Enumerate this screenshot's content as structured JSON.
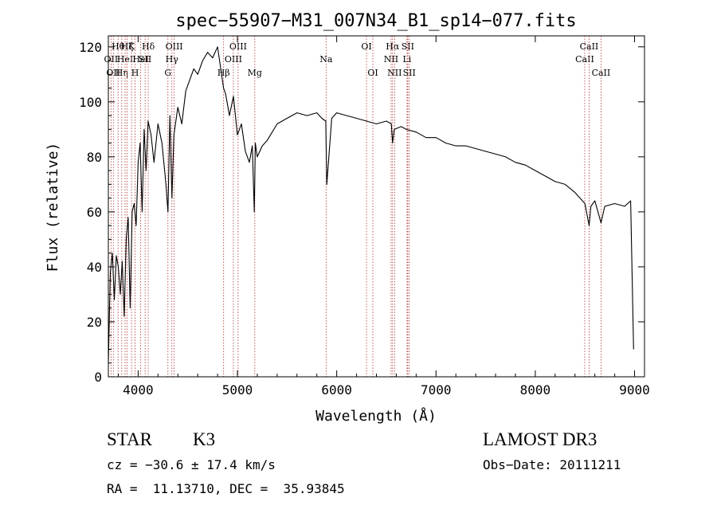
{
  "chart_data": {
    "type": "line",
    "title": "spec−55907−M31_007N34_B1_sp14−077.fits",
    "xlabel": "Wavelength (Å)",
    "ylabel": "Flux (relative)",
    "xlim": [
      3700,
      9100
    ],
    "ylim": [
      0,
      124
    ],
    "xticks": [
      4000,
      5000,
      6000,
      7000,
      8000,
      9000
    ],
    "yticks": [
      0,
      20,
      40,
      60,
      80,
      100,
      120
    ],
    "grid": false,
    "line_color": "#000000",
    "marker_color": "#b03030",
    "series": [
      {
        "values_note": "",
        "x": [
          3700,
          3720,
          3740,
          3760,
          3780,
          3800,
          3820,
          3840,
          3860,
          3880,
          3900,
          3920,
          3940,
          3960,
          3980,
          4000,
          4020,
          4040,
          4060,
          4080,
          4100,
          4130,
          4160,
          4200,
          4240,
          4280,
          4300,
          4320,
          4340,
          4360,
          4400,
          4440,
          4480,
          4520,
          4560,
          4600,
          4650,
          4700,
          4750,
          4800,
          4840,
          4860,
          4880,
          4920,
          4960,
          5000,
          5040,
          5080,
          5120,
          5150,
          5170,
          5180,
          5200,
          5250,
          5300,
          5400,
          5500,
          5600,
          5700,
          5800,
          5850,
          5890,
          5900,
          5950,
          6000,
          6100,
          6200,
          6300,
          6400,
          6500,
          6550,
          6563,
          6580,
          6650,
          6700,
          6800,
          6900,
          7000,
          7100,
          7200,
          7300,
          7400,
          7500,
          7600,
          7700,
          7800,
          7900,
          8000,
          8100,
          8200,
          8300,
          8400,
          8500,
          8542,
          8560,
          8600,
          8662,
          8700,
          8800,
          8900,
          8960,
          8990
        ],
        "y": [
          5,
          38,
          45,
          28,
          44,
          40,
          30,
          42,
          22,
          50,
          58,
          25,
          60,
          63,
          55,
          78,
          85,
          60,
          90,
          75,
          93,
          88,
          78,
          92,
          85,
          70,
          60,
          95,
          65,
          88,
          98,
          92,
          104,
          108,
          112,
          110,
          115,
          118,
          116,
          120,
          110,
          105,
          103,
          95,
          102,
          88,
          92,
          82,
          78,
          84,
          60,
          85,
          80,
          84,
          86,
          92,
          94,
          96,
          95,
          96,
          94,
          93,
          70,
          94,
          96,
          95,
          94,
          93,
          92,
          93,
          92,
          85,
          90,
          91,
          90,
          89,
          87,
          87,
          85,
          84,
          84,
          83,
          82,
          81,
          80,
          78,
          77,
          75,
          73,
          71,
          70,
          67,
          63,
          55,
          62,
          64,
          56,
          62,
          63,
          62,
          64,
          10
        ]
      }
    ],
    "lines": [
      {
        "x": 3727,
        "labels": [
          "OII"
        ],
        "pos": [
          "mid"
        ]
      },
      {
        "x": 3750,
        "labels": [
          "OII"
        ],
        "pos": [
          "lower"
        ]
      },
      {
        "x": 3798,
        "labels": [
          "Hθ"
        ],
        "pos": [
          "top"
        ]
      },
      {
        "x": 3835,
        "labels": [
          "Hη"
        ],
        "pos": [
          "lower"
        ]
      },
      {
        "x": 3869,
        "labels": [
          "HeI"
        ],
        "pos": [
          "mid"
        ]
      },
      {
        "x": 3889,
        "labels": [
          "Hζ"
        ],
        "pos": [
          "top"
        ]
      },
      {
        "x": 3934,
        "labels": [
          "K"
        ],
        "pos": [
          "top"
        ]
      },
      {
        "x": 3969,
        "labels": [
          "H"
        ],
        "pos": [
          "lower"
        ]
      },
      {
        "x": 4026,
        "labels": [
          "HeI"
        ],
        "pos": [
          "mid"
        ]
      },
      {
        "x": 4070,
        "labels": [
          "SII"
        ],
        "pos": [
          "mid"
        ]
      },
      {
        "x": 4102,
        "labels": [
          "Hδ"
        ],
        "pos": [
          "top"
        ]
      },
      {
        "x": 4300,
        "labels": [
          "G"
        ],
        "pos": [
          "lower"
        ]
      },
      {
        "x": 4340,
        "labels": [
          "Hγ"
        ],
        "pos": [
          "mid"
        ]
      },
      {
        "x": 4363,
        "labels": [
          "OIII"
        ],
        "pos": [
          "top"
        ]
      },
      {
        "x": 4861,
        "labels": [
          "Hβ"
        ],
        "pos": [
          "lower"
        ]
      },
      {
        "x": 4959,
        "labels": [
          "OIII"
        ],
        "pos": [
          "mid"
        ]
      },
      {
        "x": 5007,
        "labels": [
          "OIII"
        ],
        "pos": [
          "top"
        ]
      },
      {
        "x": 5175,
        "labels": [
          "Mg"
        ],
        "pos": [
          "lower"
        ]
      },
      {
        "x": 5893,
        "labels": [
          "Na"
        ],
        "pos": [
          "mid"
        ]
      },
      {
        "x": 6300,
        "labels": [
          "OI"
        ],
        "pos": [
          "top"
        ]
      },
      {
        "x": 6364,
        "labels": [
          "OI"
        ],
        "pos": [
          "lower"
        ]
      },
      {
        "x": 6548,
        "labels": [
          "NII"
        ],
        "pos": [
          "mid"
        ]
      },
      {
        "x": 6563,
        "labels": [
          "Hα"
        ],
        "pos": [
          "top"
        ]
      },
      {
        "x": 6583,
        "labels": [
          "NII"
        ],
        "pos": [
          "lower"
        ]
      },
      {
        "x": 6708,
        "labels": [
          "Li"
        ],
        "pos": [
          "mid"
        ]
      },
      {
        "x": 6716,
        "labels": [
          "SII"
        ],
        "pos": [
          "top"
        ]
      },
      {
        "x": 6731,
        "labels": [
          "SII"
        ],
        "pos": [
          "lower"
        ]
      },
      {
        "x": 8498,
        "labels": [
          "CaII"
        ],
        "pos": [
          "mid"
        ]
      },
      {
        "x": 8542,
        "labels": [
          "CaII"
        ],
        "pos": [
          "top"
        ]
      },
      {
        "x": 8662,
        "labels": [
          "CaII"
        ],
        "pos": [
          "lower"
        ]
      }
    ]
  },
  "footer": {
    "class_label": "STAR",
    "subclass": "K3",
    "survey": "LAMOST DR3",
    "cz": "cz = −30.6 ± 17.4 km/s",
    "obs_date": "Obs−Date: 20111211",
    "radec": "RA =  11.13710, DEC =  35.93845"
  }
}
